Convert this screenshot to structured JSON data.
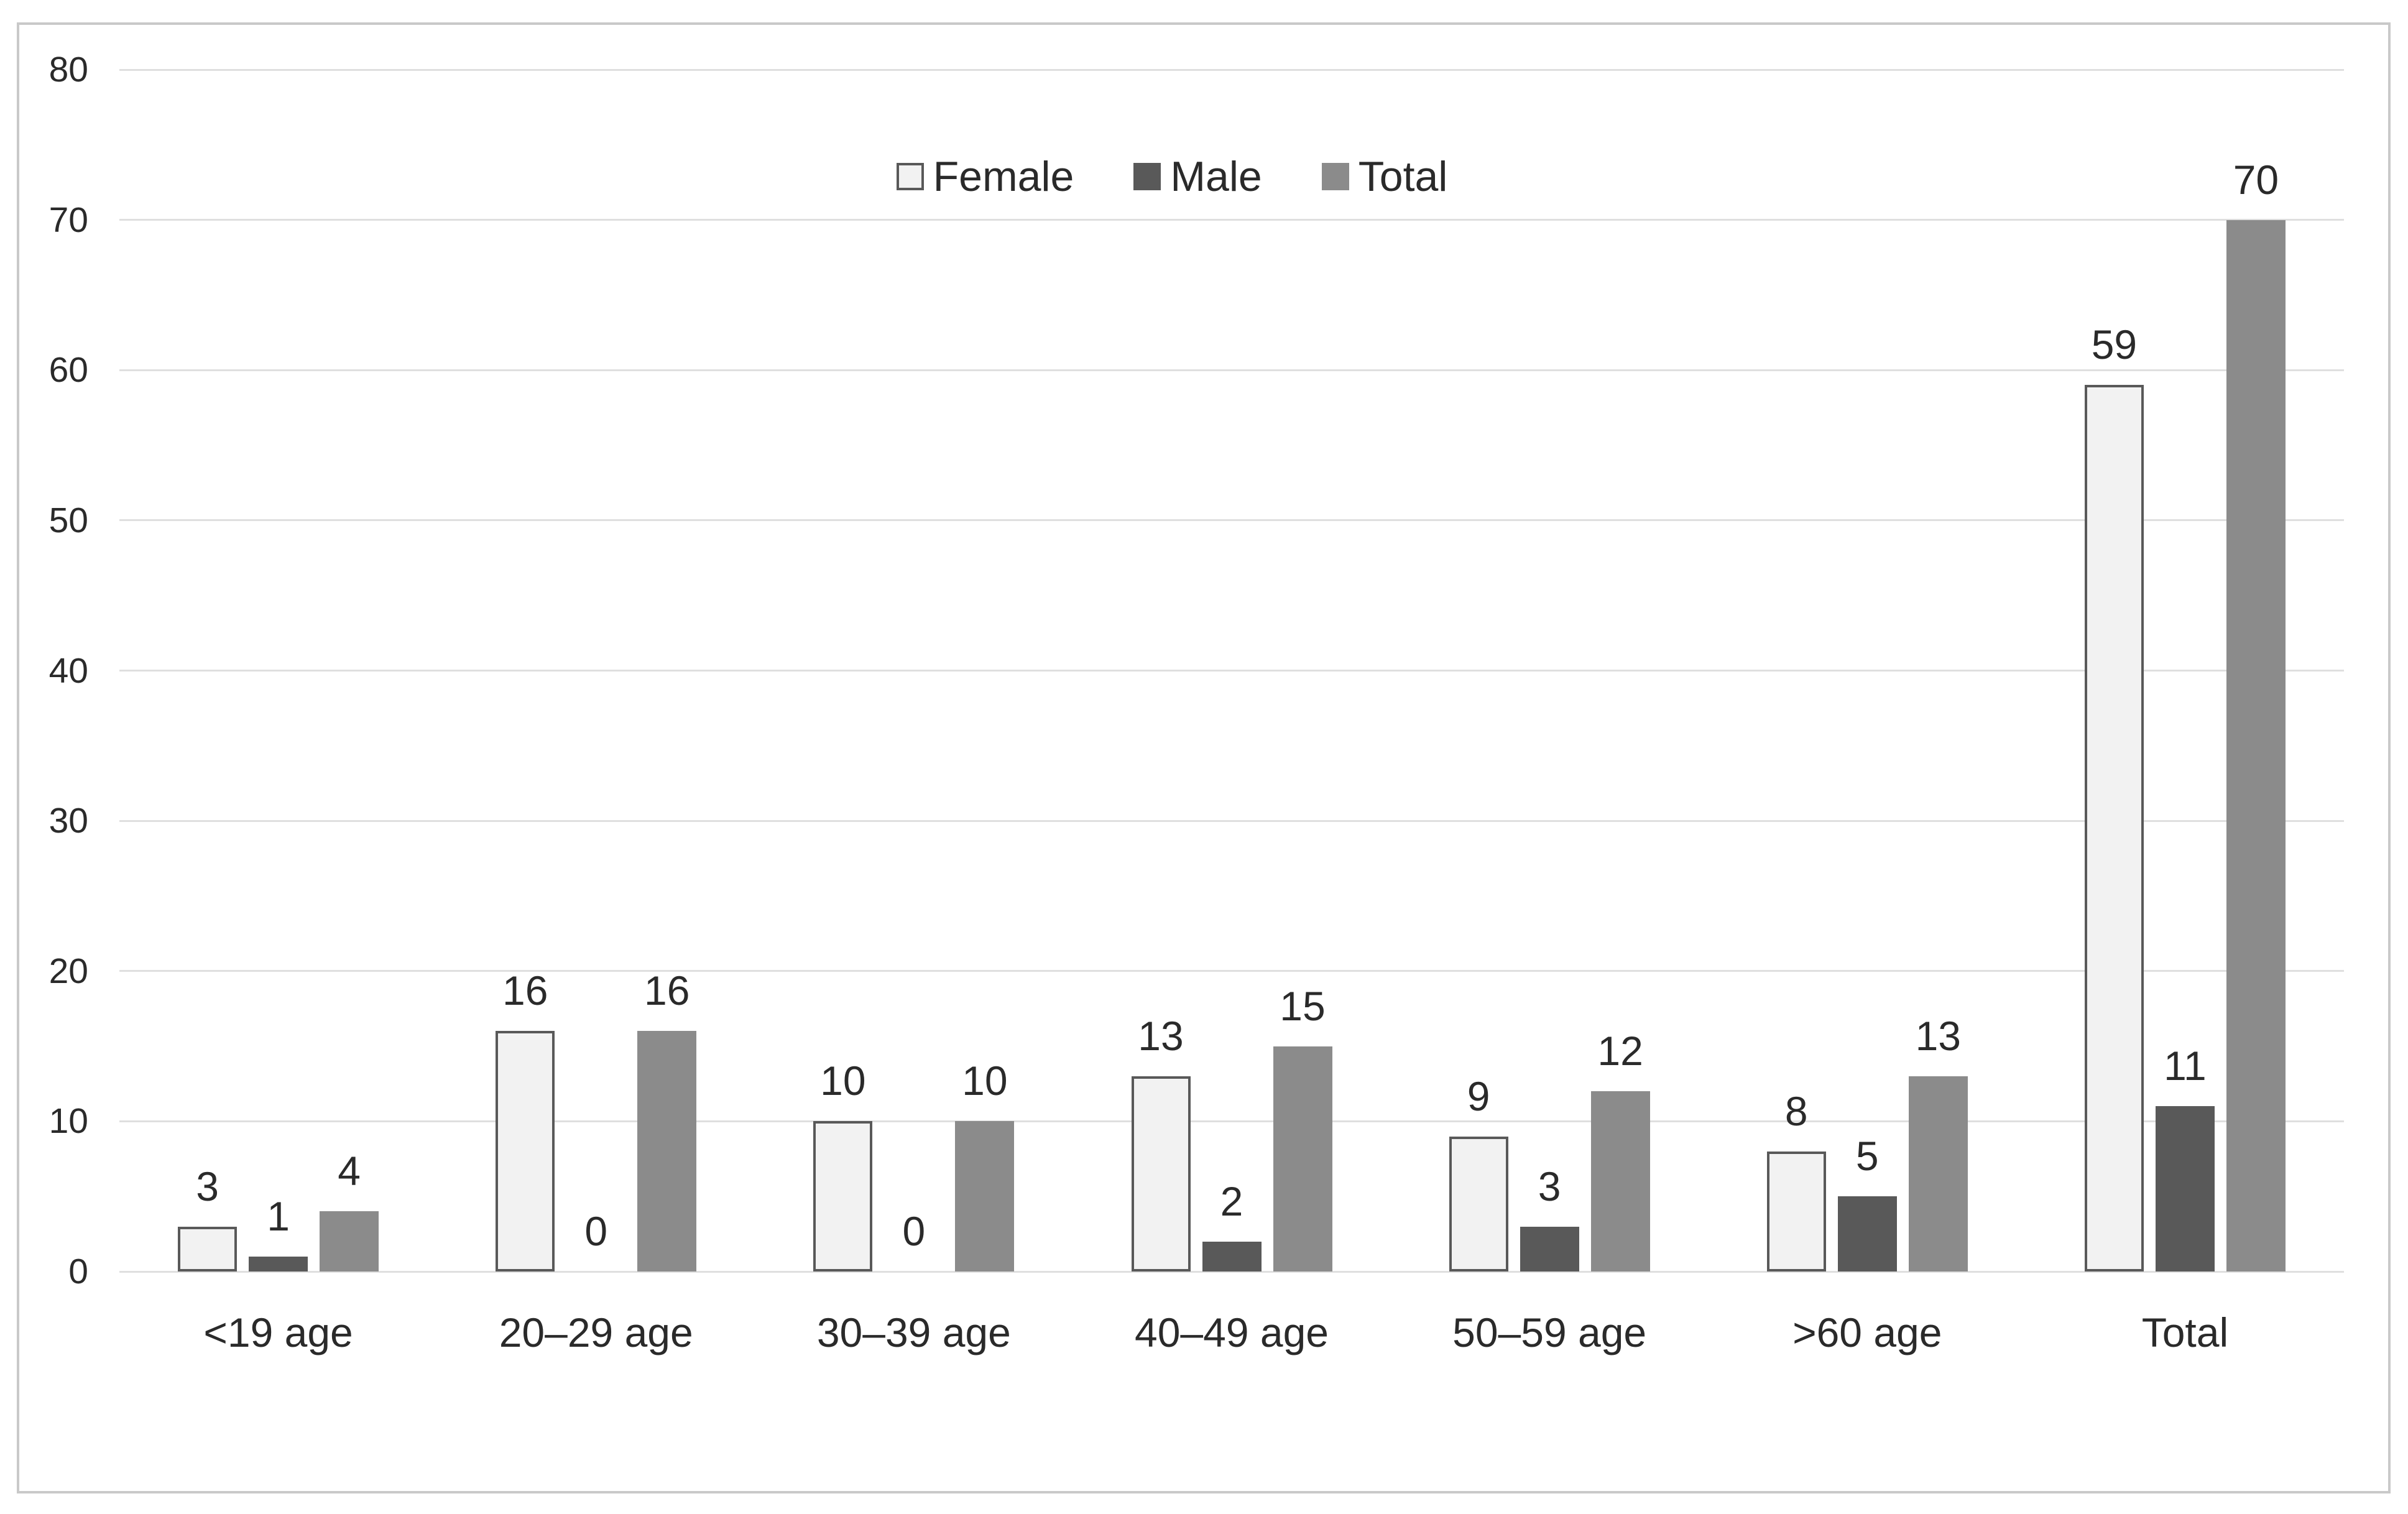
{
  "chart_data": {
    "type": "bar",
    "categories": [
      "<19 age",
      "20–29 age",
      "30–39 age",
      "40–49 age",
      "50–59 age",
      ">60 age",
      "Total"
    ],
    "series": [
      {
        "name": "Female",
        "values": [
          3,
          16,
          10,
          13,
          9,
          8,
          59
        ]
      },
      {
        "name": "Male",
        "values": [
          1,
          0,
          0,
          2,
          3,
          5,
          11
        ]
      },
      {
        "name": "Total",
        "values": [
          4,
          16,
          10,
          15,
          12,
          13,
          70
        ]
      }
    ],
    "title": "",
    "xlabel": "",
    "ylabel": "",
    "ylim": [
      0,
      80
    ],
    "yticks": [
      80,
      70,
      60,
      50,
      40,
      30,
      20,
      10,
      0
    ],
    "grid": true,
    "data_labels": true,
    "legend_position": "top-center"
  },
  "colors": {
    "female_fill": "#f2f2f2",
    "female_border": "#595959",
    "male_fill": "#595959",
    "total_fill": "#8b8b8b",
    "gridline": "#dfdfdf",
    "baseline": "#dfdfdf",
    "text": "#2a2a2a",
    "figure_border": "#c9c9c9",
    "background": "#ffffff"
  }
}
